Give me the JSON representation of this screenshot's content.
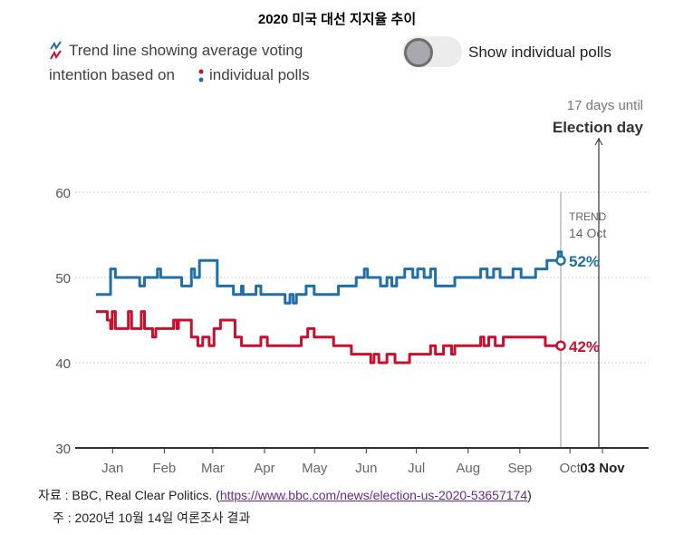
{
  "title": "2020 미국 대선 지지율 추이",
  "legend": {
    "line1": "Trend line showing average voting",
    "line2a": "intention based on",
    "line2b": "individual polls"
  },
  "toggle": {
    "label": "Show individual polls",
    "on": false
  },
  "election": {
    "days_until": "17 days until",
    "label": "Election day"
  },
  "trend_marker": {
    "label": "TREND",
    "date": "14 Oct"
  },
  "source": {
    "prefix": "자료 : BBC, Real Clear Politics. (",
    "link": "https://www.bbc.com/news/election-us-2020-53657174",
    "suffix": ")"
  },
  "note": "주 : 2020년 10월 14일 여론조사 결과",
  "colors": {
    "blue": "#1f6fa8",
    "red": "#c8102e"
  },
  "chart_data": {
    "type": "line",
    "title": "2020 미국 대선 지지율 추이",
    "xlabel": "",
    "ylabel": "",
    "ylim": [
      30,
      60
    ],
    "yticks": [
      30,
      40,
      50,
      60
    ],
    "xticks": [
      "Jan",
      "Feb",
      "Mar",
      "Apr",
      "May",
      "Jun",
      "Jul",
      "Aug",
      "Sep",
      "Oct",
      "03 Nov"
    ],
    "xtick_days": [
      8,
      40,
      70,
      102,
      133,
      165,
      196,
      228,
      260,
      291,
      307
    ],
    "x_unit": "day of 2020 (0 = 1 Jan)",
    "grid": true,
    "series": [
      {
        "name": "Blue trend",
        "end_label": "52%",
        "color": "#1f6fa8",
        "points": [
          [
            0,
            48
          ],
          [
            9,
            51
          ],
          [
            12,
            50
          ],
          [
            27,
            49
          ],
          [
            30,
            50
          ],
          [
            38,
            51
          ],
          [
            40,
            50
          ],
          [
            53,
            49
          ],
          [
            59,
            51
          ],
          [
            61,
            50
          ],
          [
            64,
            52
          ],
          [
            73,
            52
          ],
          [
            75,
            49
          ],
          [
            85,
            48
          ],
          [
            90,
            49
          ],
          [
            91,
            48
          ],
          [
            99,
            49
          ],
          [
            102,
            48
          ],
          [
            117,
            47
          ],
          [
            120,
            48
          ],
          [
            122,
            47
          ],
          [
            124,
            48
          ],
          [
            130,
            49
          ],
          [
            135,
            48
          ],
          [
            150,
            49
          ],
          [
            161,
            50
          ],
          [
            166,
            51
          ],
          [
            168,
            50
          ],
          [
            176,
            49
          ],
          [
            180,
            50
          ],
          [
            183,
            49
          ],
          [
            186,
            50
          ],
          [
            191,
            51
          ],
          [
            196,
            50
          ],
          [
            199,
            51
          ],
          [
            203,
            50
          ],
          [
            207,
            51
          ],
          [
            210,
            49
          ],
          [
            219,
            49
          ],
          [
            222,
            50
          ],
          [
            238,
            51
          ],
          [
            242,
            50
          ],
          [
            246,
            51
          ],
          [
            250,
            50
          ],
          [
            258,
            51
          ],
          [
            263,
            50
          ],
          [
            272,
            51
          ],
          [
            279,
            52
          ],
          [
            286,
            53
          ],
          [
            288,
            52
          ]
        ]
      },
      {
        "name": "Red trend",
        "end_label": "42%",
        "color": "#c8102e",
        "points": [
          [
            0,
            46
          ],
          [
            7,
            45
          ],
          [
            9,
            44
          ],
          [
            10,
            46
          ],
          [
            12,
            44
          ],
          [
            18,
            44
          ],
          [
            20,
            46
          ],
          [
            22,
            44
          ],
          [
            28,
            46
          ],
          [
            30,
            44
          ],
          [
            35,
            43
          ],
          [
            37,
            44
          ],
          [
            48,
            45
          ],
          [
            50,
            44
          ],
          [
            51,
            45
          ],
          [
            59,
            43
          ],
          [
            63,
            42
          ],
          [
            66,
            43
          ],
          [
            70,
            42
          ],
          [
            73,
            44
          ],
          [
            77,
            45
          ],
          [
            86,
            43
          ],
          [
            90,
            42
          ],
          [
            102,
            43
          ],
          [
            106,
            42
          ],
          [
            127,
            43
          ],
          [
            131,
            44
          ],
          [
            135,
            43
          ],
          [
            145,
            43
          ],
          [
            147,
            42
          ],
          [
            158,
            41
          ],
          [
            170,
            40
          ],
          [
            172,
            41
          ],
          [
            175,
            40
          ],
          [
            180,
            41
          ],
          [
            185,
            40
          ],
          [
            194,
            41
          ],
          [
            207,
            42
          ],
          [
            210,
            41
          ],
          [
            215,
            42
          ],
          [
            220,
            41
          ],
          [
            222,
            42
          ],
          [
            238,
            43
          ],
          [
            240,
            42
          ],
          [
            243,
            43
          ],
          [
            247,
            42
          ],
          [
            252,
            43
          ],
          [
            276,
            43
          ],
          [
            278,
            42
          ],
          [
            288,
            42
          ]
        ]
      }
    ],
    "annotations": [
      "TREND 14 Oct",
      "17 days until Election day"
    ]
  }
}
